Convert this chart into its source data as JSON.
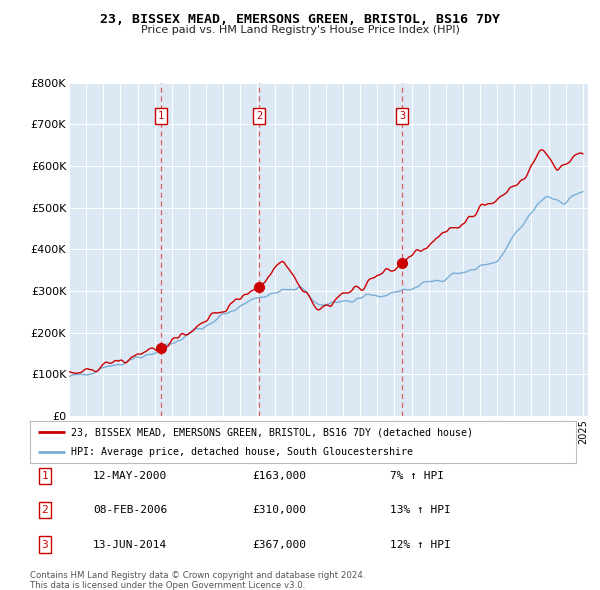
{
  "title": "23, BISSEX MEAD, EMERSONS GREEN, BRISTOL, BS16 7DY",
  "subtitle": "Price paid vs. HM Land Registry's House Price Index (HPI)",
  "bg_color": "#dce9f5",
  "red_line_label": "23, BISSEX MEAD, EMERSONS GREEN, BRISTOL, BS16 7DY (detached house)",
  "blue_line_label": "HPI: Average price, detached house, South Gloucestershire",
  "footer1": "Contains HM Land Registry data © Crown copyright and database right 2024.",
  "footer2": "This data is licensed under the Open Government Licence v3.0.",
  "ylabel_ticks": [
    "£0",
    "£100K",
    "£200K",
    "£300K",
    "£400K",
    "£500K",
    "£600K",
    "£700K",
    "£800K"
  ],
  "ytick_vals": [
    0,
    100000,
    200000,
    300000,
    400000,
    500000,
    600000,
    700000,
    800000
  ],
  "x_start_year": 1995,
  "x_end_year": 2025,
  "red_color": "#cc0000",
  "blue_color": "#7aaed6",
  "dashed_color": "#dd4444",
  "marker_color": "#cc0000",
  "box_color": "#cc0000",
  "sale_years": [
    2000.37,
    2006.09,
    2014.45
  ],
  "sale_prices": [
    163000,
    310000,
    367000
  ],
  "sale_labels": [
    "1",
    "2",
    "3"
  ],
  "sale_dates": [
    "12-MAY-2000",
    "08-FEB-2006",
    "13-JUN-2014"
  ],
  "sale_pcts": [
    "7% ↑ HPI",
    "13% ↑ HPI",
    "12% ↑ HPI"
  ],
  "sale_price_strs": [
    "£163,000",
    "£310,000",
    "£367,000"
  ]
}
